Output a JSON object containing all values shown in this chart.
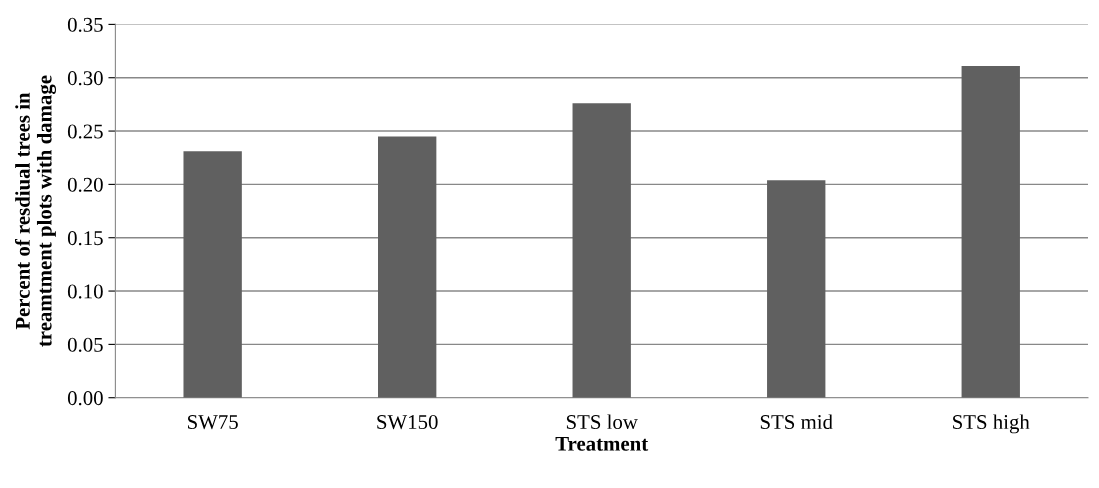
{
  "chart_data": {
    "type": "bar",
    "xlabel": "Treatment",
    "ylabel": "Percent of resdiual trees in\ntreamtment plots with damage",
    "categories": [
      "SW75",
      "SW150",
      "STS low",
      "STS mid",
      "STS high"
    ],
    "values": [
      0.231,
      0.245,
      0.276,
      0.204,
      0.311
    ],
    "color": "#606060",
    "ylim": [
      0,
      0.35
    ],
    "yticks": [
      {
        "value": 0,
        "label": "0.00"
      },
      {
        "value": 0.05,
        "label": "0.05"
      },
      {
        "value": 0.1,
        "label": "0.10"
      },
      {
        "value": 0.15,
        "label": "0.15"
      },
      {
        "value": 0.2,
        "label": "0.20"
      },
      {
        "value": 0.25,
        "label": "0.25"
      },
      {
        "value": 0.3,
        "label": "0.30"
      },
      {
        "value": 0.35,
        "label": "0.35"
      }
    ],
    "grid": "y"
  }
}
